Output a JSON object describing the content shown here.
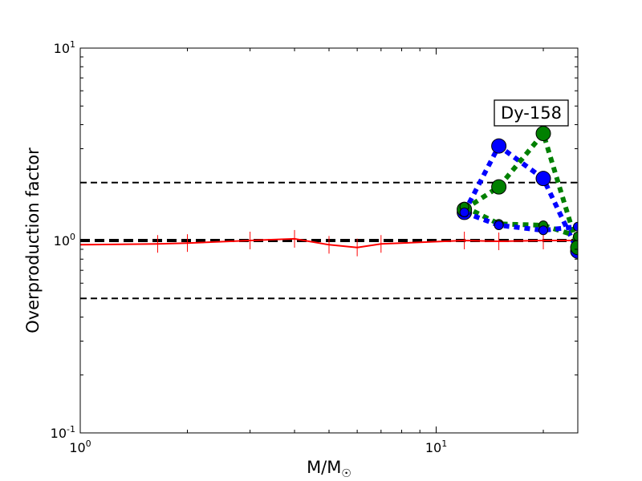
{
  "chart_data": {
    "type": "line",
    "title": "",
    "xlabel": "M/M",
    "xlabel_sub": "☉",
    "ylabel": "Overproduction factor",
    "xscale": "log",
    "yscale": "log",
    "xlim": [
      1,
      25
    ],
    "ylim": [
      0.1,
      10
    ],
    "xticks": [
      {
        "value": 1,
        "base": "10",
        "exp": "0"
      },
      {
        "value": 10,
        "base": "10",
        "exp": "1"
      }
    ],
    "yticks": [
      {
        "value": 0.1,
        "base": "10",
        "exp": "-1"
      },
      {
        "value": 1,
        "base": "10",
        "exp": "0"
      },
      {
        "value": 10,
        "base": "10",
        "exp": "1"
      }
    ],
    "grid": false,
    "annotation": {
      "text": "Dy-158",
      "x": 18.5,
      "y": 4.6
    },
    "reference_lines": [
      {
        "y": 2.0,
        "color": "#000000",
        "style": "dashed",
        "width": 2
      },
      {
        "y": 1.0,
        "color": "#000000",
        "style": "dashed",
        "width": 4
      },
      {
        "y": 0.5,
        "color": "#000000",
        "style": "dashed",
        "width": 2
      }
    ],
    "series": [
      {
        "color": "#ff0000",
        "style": "solid",
        "marker": "vline",
        "points": [
          {
            "x": 1.0,
            "y": 0.95
          },
          {
            "x": 1.65,
            "y": 0.96
          },
          {
            "x": 2.0,
            "y": 0.97
          },
          {
            "x": 3.0,
            "y": 1.0
          },
          {
            "x": 4.0,
            "y": 1.02
          },
          {
            "x": 5.0,
            "y": 0.95
          },
          {
            "x": 6.0,
            "y": 0.92
          },
          {
            "x": 7.0,
            "y": 0.96
          },
          {
            "x": 12.0,
            "y": 1.0
          },
          {
            "x": 15.0,
            "y": 0.99
          },
          {
            "x": 20.0,
            "y": 1.0
          },
          {
            "x": 25.0,
            "y": 1.0
          }
        ]
      },
      {
        "color": "#0000ff",
        "style": "dotted",
        "marker": "circle-large",
        "points": [
          {
            "x": 12.0,
            "y": 1.4
          },
          {
            "x": 15.0,
            "y": 3.1
          },
          {
            "x": 20.0,
            "y": 2.1
          },
          {
            "x": 25.0,
            "y": 0.88
          }
        ]
      },
      {
        "color": "#008000",
        "style": "dotted",
        "marker": "circle-large",
        "points": [
          {
            "x": 12.0,
            "y": 1.45
          },
          {
            "x": 15.0,
            "y": 1.9
          },
          {
            "x": 20.0,
            "y": 3.6
          },
          {
            "x": 25.0,
            "y": 0.92
          }
        ]
      },
      {
        "color": "#008000",
        "style": "dotted",
        "marker": "circle-small",
        "points": [
          {
            "x": 12.0,
            "y": 1.5
          },
          {
            "x": 15.0,
            "y": 1.22
          },
          {
            "x": 20.0,
            "y": 1.2
          },
          {
            "x": 25.0,
            "y": 1.05
          }
        ]
      },
      {
        "color": "#0000ff",
        "style": "dotted",
        "marker": "circle-small",
        "points": [
          {
            "x": 12.0,
            "y": 1.4
          },
          {
            "x": 15.0,
            "y": 1.2
          },
          {
            "x": 20.0,
            "y": 1.13
          },
          {
            "x": 25.0,
            "y": 1.18
          }
        ]
      }
    ]
  }
}
